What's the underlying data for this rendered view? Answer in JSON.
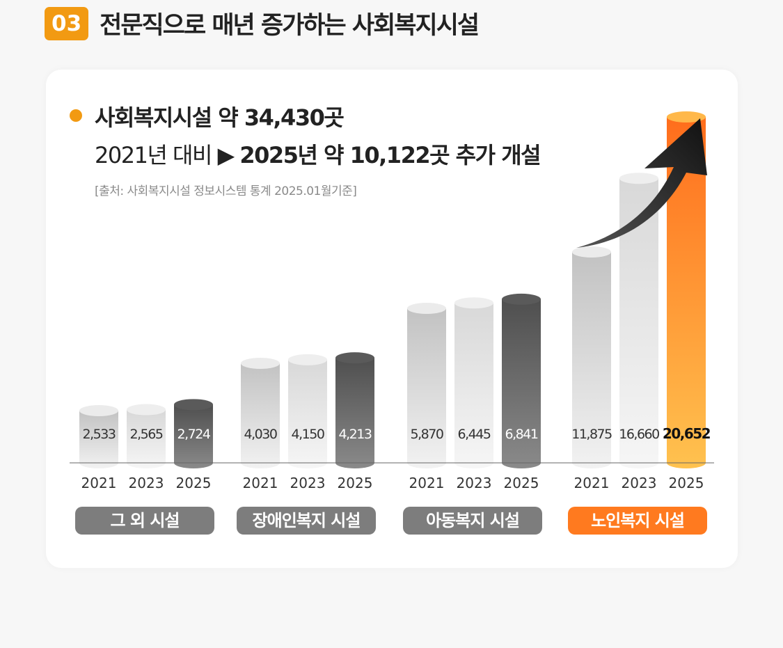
{
  "section": {
    "number": "03",
    "title": "전문직으로 매년 증가하는 사회복지시설"
  },
  "summary": {
    "line1": "사회복지시설 약 34,430곳",
    "line2_prefix": "2021년 대비 ▶ ",
    "line2_strong": "2025년 약 10,122곳 추가 개설",
    "source": "[출처: 사회복지시설 정보시스템 통계 2025.01월기준]"
  },
  "colors": {
    "accent": "#f29a12",
    "orange_bar": "#ff7a1f",
    "dark_bar": "#5f5f5f",
    "light_bar": "#dcdcdc",
    "gray_pill": "#7d7d7d"
  },
  "chart_data": {
    "type": "bar",
    "style": "cylinder",
    "categories": [
      "그 외 시설",
      "장애인복지 시설",
      "아동복지 시설",
      "노인복지 시설"
    ],
    "years": [
      "2021",
      "2023",
      "2025"
    ],
    "values": [
      [
        2533,
        2565,
        2724
      ],
      [
        4030,
        4150,
        4213
      ],
      [
        5870,
        6445,
        6841
      ],
      [
        11875,
        16660,
        20652
      ]
    ],
    "value_labels": [
      [
        "2,533",
        "2,565",
        "2,724"
      ],
      [
        "4,030",
        "4,150",
        "4,213"
      ],
      [
        "5,870",
        "6,445",
        "6,841"
      ],
      [
        "11,875",
        "16,660",
        "20,652"
      ]
    ],
    "highlight": {
      "group": 3,
      "year": 2
    },
    "axis_scale": "non-linear, not shown",
    "grid": false,
    "legend": "none"
  }
}
